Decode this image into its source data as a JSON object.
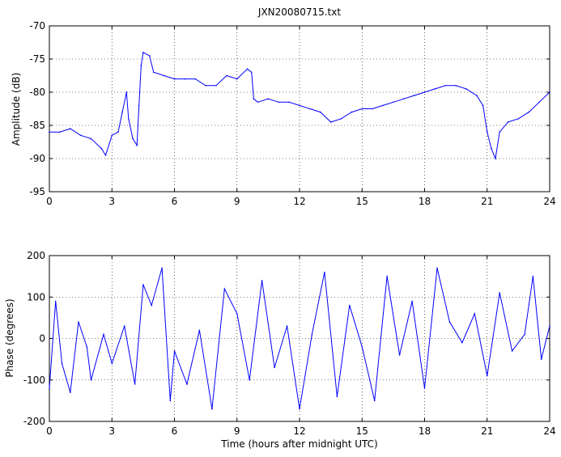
{
  "figure": {
    "title": "JXN20080715.txt",
    "line_color": "#0000ff"
  },
  "chart_data": [
    {
      "type": "line",
      "title": "JXN20080715.txt",
      "xlabel": "",
      "ylabel": "Amplitude (dB)",
      "xlim": [
        0,
        24
      ],
      "ylim": [
        -95,
        -70
      ],
      "xticks": [
        0,
        3,
        6,
        9,
        12,
        15,
        18,
        21,
        24
      ],
      "yticks": [
        -95,
        -90,
        -85,
        -80,
        -75,
        -70
      ],
      "grid": true,
      "series": [
        {
          "x": [
            0,
            0.5,
            1,
            1.5,
            2,
            2.5,
            2.7,
            3,
            3.3,
            3.5,
            3.7,
            3.8,
            4.0,
            4.2,
            4.3,
            4.4,
            4.5,
            4.8,
            5,
            5.5,
            6,
            6.5,
            7,
            7.5,
            8,
            8.5,
            9,
            9.5,
            9.7,
            9.8,
            10,
            10.5,
            11,
            11.5,
            12,
            12.5,
            13,
            13.5,
            14,
            14.5,
            15,
            15.5,
            16,
            16.5,
            17,
            17.5,
            18,
            18.5,
            19,
            19.5,
            20,
            20.5,
            20.8,
            21,
            21.2,
            21.4,
            21.6,
            22,
            22.5,
            23,
            23.5,
            24
          ],
          "y": [
            -86,
            -86,
            -85.5,
            -86.5,
            -87,
            -88.5,
            -89.5,
            -86.5,
            -86,
            -83,
            -80,
            -84,
            -87,
            -88,
            -82,
            -76,
            -74,
            -74.5,
            -77,
            -77.5,
            -78,
            -78,
            -78,
            -79,
            -79,
            -77.5,
            -78,
            -76.5,
            -77,
            -81,
            -81.5,
            -81,
            -81.5,
            -81.5,
            -82,
            -82.5,
            -83,
            -84.5,
            -84,
            -83,
            -82.5,
            -82.5,
            -82,
            -81.5,
            -81,
            -80.5,
            -80,
            -79.5,
            -79,
            -79,
            -79.5,
            -80.5,
            -82,
            -86,
            -88.5,
            -90,
            -86,
            -84.5,
            -84,
            -83,
            -81.5,
            -80
          ]
        }
      ]
    },
    {
      "type": "line",
      "title": "",
      "xlabel": "Time (hours after midnight UTC)",
      "ylabel": "Phase (degrees)",
      "xlim": [
        0,
        24
      ],
      "ylim": [
        -200,
        200
      ],
      "xticks": [
        0,
        3,
        6,
        9,
        12,
        15,
        18,
        21,
        24
      ],
      "yticks": [
        -200,
        -100,
        0,
        100,
        200
      ],
      "grid": true,
      "series": [
        {
          "x": [
            0,
            0.3,
            0.6,
            1.0,
            1.4,
            1.8,
            2.0,
            2.6,
            3.0,
            3.6,
            4.1,
            4.5,
            4.9,
            5.4,
            5.8,
            6.0,
            6.6,
            7.2,
            7.8,
            8.4,
            9.0,
            9.6,
            10.2,
            10.8,
            11.4,
            12.0,
            12.6,
            13.2,
            13.8,
            14.4,
            15.0,
            15.6,
            16.2,
            16.8,
            17.4,
            18.0,
            18.6,
            19.2,
            19.8,
            20.4,
            21.0,
            21.6,
            22.2,
            22.8,
            23.2,
            23.6,
            24.0
          ],
          "y": [
            -120,
            90,
            -60,
            -130,
            40,
            -20,
            -100,
            10,
            -60,
            30,
            -110,
            130,
            80,
            170,
            -150,
            -30,
            -110,
            20,
            -170,
            120,
            60,
            -100,
            140,
            -70,
            30,
            -170,
            10,
            160,
            -140,
            80,
            -20,
            -150,
            150,
            -40,
            90,
            -120,
            170,
            40,
            -10,
            60,
            -90,
            110,
            -30,
            10,
            150,
            -50,
            30
          ]
        }
      ]
    }
  ]
}
